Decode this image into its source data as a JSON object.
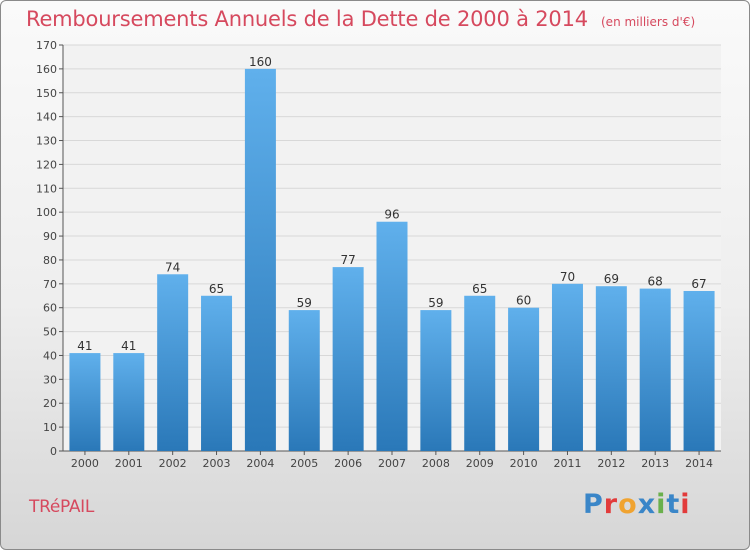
{
  "title": "Remboursements Annuels de la Dette de 2000 à 2014",
  "unit": "(en milliers d'€)",
  "commune": "TRéPAIL",
  "brand": {
    "text": "Proxiti",
    "letter_colors": [
      "#3a86c8",
      "#e23b3b",
      "#f0a330",
      "#3a86c8",
      "#6ab04c",
      "#3a86c8",
      "#e23b3b"
    ]
  },
  "colors": {
    "bar_top": "#60b0ec",
    "bar_bottom": "#2a78b8",
    "title": "#d6495e",
    "grid": "#d8d8d8"
  },
  "chart_data": {
    "type": "bar",
    "categories": [
      "2000",
      "2001",
      "2002",
      "2003",
      "2004",
      "2005",
      "2006",
      "2007",
      "2008",
      "2009",
      "2010",
      "2011",
      "2012",
      "2013",
      "2014"
    ],
    "values": [
      41,
      41,
      74,
      65,
      160,
      59,
      77,
      96,
      59,
      65,
      60,
      70,
      69,
      68,
      67
    ],
    "ylim": [
      0,
      170
    ],
    "yticks": [
      0,
      10,
      20,
      30,
      40,
      50,
      60,
      70,
      80,
      90,
      100,
      110,
      120,
      130,
      140,
      150,
      160,
      170
    ],
    "grid": true,
    "data_labels": true
  }
}
